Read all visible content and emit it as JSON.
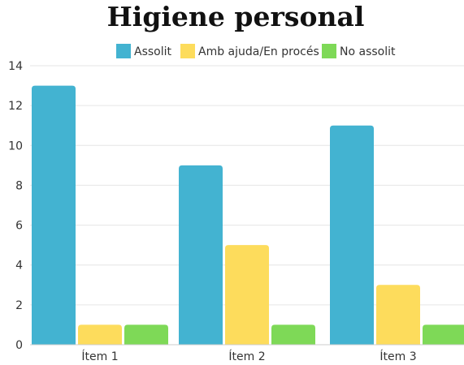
{
  "chart_data": {
    "type": "bar",
    "title": "Higiene personal",
    "categories": [
      "Ítem 1",
      "Ítem 2",
      "Ítem 3"
    ],
    "series": [
      {
        "name": "Assolit",
        "values": [
          13,
          9,
          11
        ],
        "color": "#43b3d1"
      },
      {
        "name": "Amb ajuda/En procés",
        "values": [
          1,
          5,
          3
        ],
        "color": "#fddc5c"
      },
      {
        "name": "No assolit",
        "values": [
          1,
          1,
          1
        ],
        "color": "#7ed957"
      }
    ],
    "ylim": [
      0,
      14
    ],
    "yticks": [
      0,
      2,
      4,
      6,
      8,
      10,
      12,
      14
    ],
    "grid": true,
    "legend": "top"
  }
}
